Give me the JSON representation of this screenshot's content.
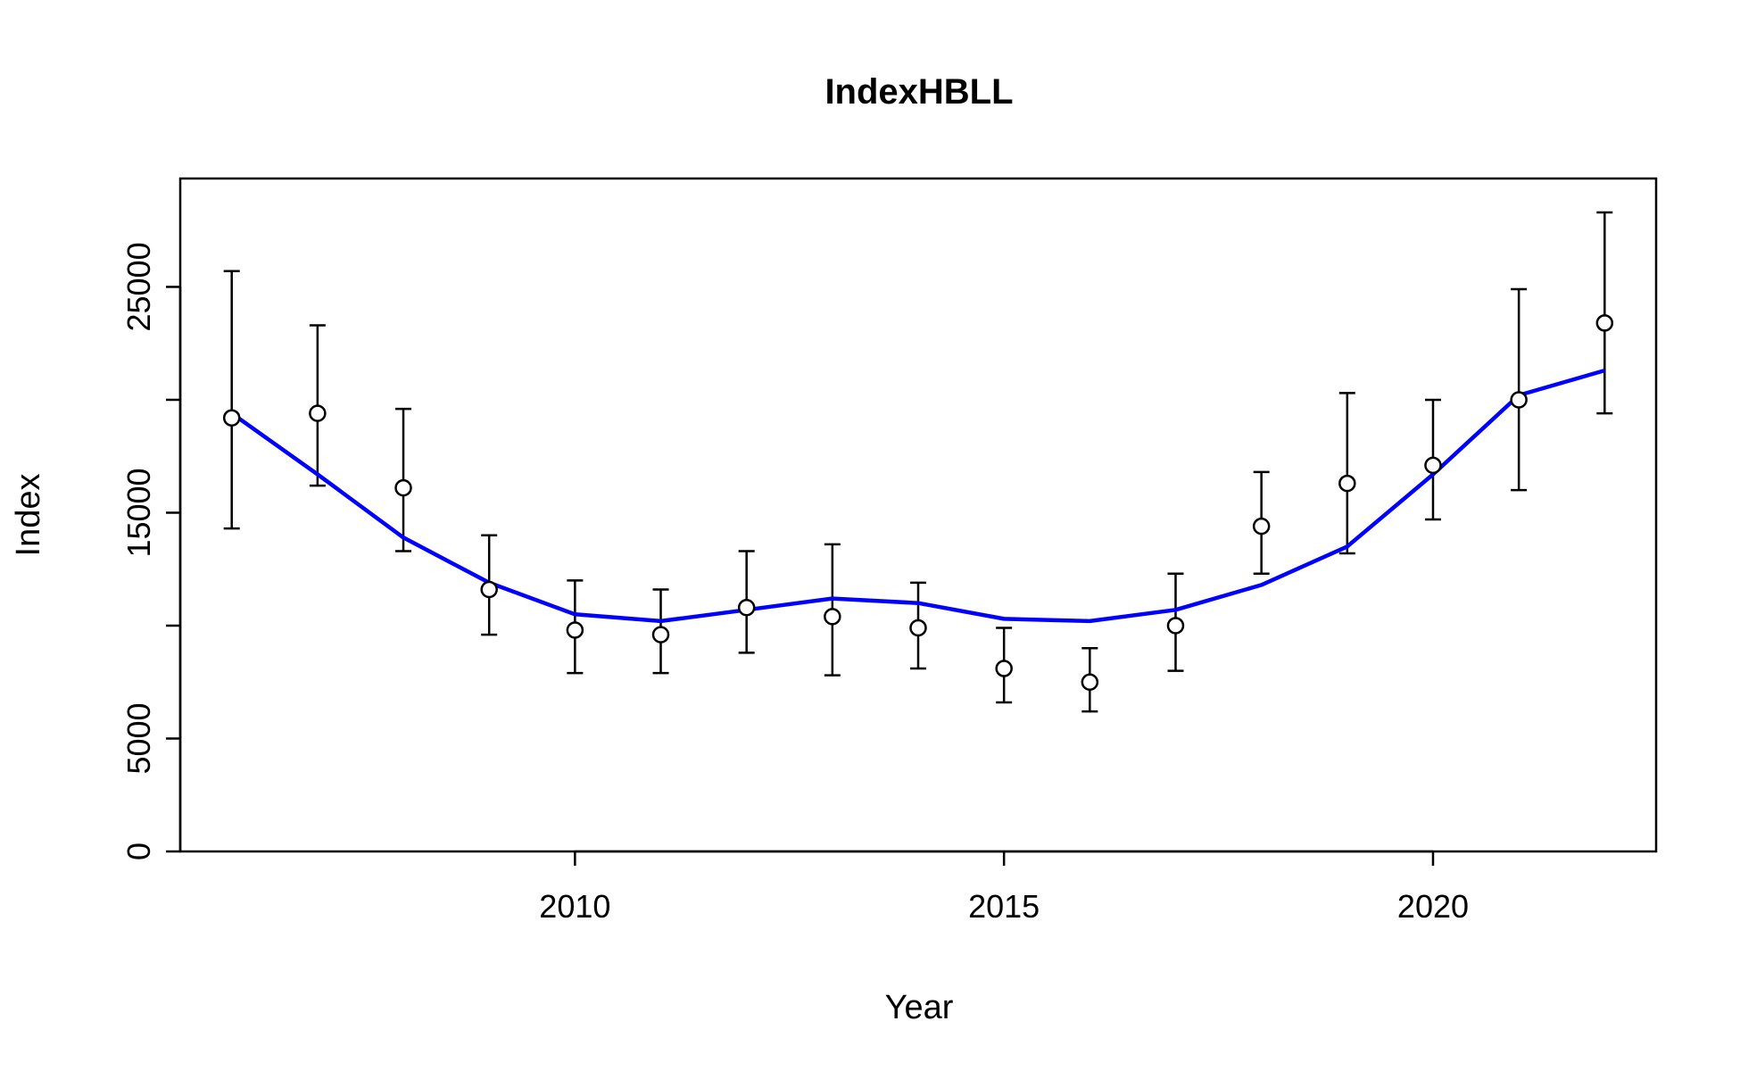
{
  "chart_data": {
    "type": "scatter",
    "title": "IndexHBLL",
    "xlabel": "Year",
    "ylabel": "Index",
    "xlim": [
      2005.4,
      2022.6
    ],
    "ylim": [
      0,
      29800
    ],
    "xticks": [
      2010,
      2015,
      2020
    ],
    "yticks": [
      0,
      5000,
      15000,
      25000
    ],
    "grid": false,
    "colors": {
      "fit": "#0000ff",
      "points": "#000000"
    },
    "series": [
      {
        "type": "points_with_errorbars",
        "x": [
          2006,
          2007,
          2008,
          2009,
          2010,
          2011,
          2012,
          2013,
          2014,
          2015,
          2016,
          2017,
          2018,
          2019,
          2020,
          2021,
          2022
        ],
        "y": [
          19200,
          19400,
          16100,
          11600,
          9800,
          9600,
          10800,
          10400,
          9900,
          8100,
          7500,
          10000,
          14400,
          16300,
          17100,
          20000,
          23400
        ],
        "lower": [
          14300,
          16200,
          13300,
          9600,
          7900,
          7900,
          8800,
          7800,
          8100,
          6600,
          6200,
          8000,
          12300,
          13200,
          14700,
          16000,
          19400
        ],
        "upper": [
          25700,
          23300,
          19600,
          14000,
          12000,
          11600,
          13300,
          13600,
          11900,
          9900,
          9000,
          12300,
          16800,
          20300,
          20000,
          24900,
          28300
        ]
      },
      {
        "type": "line",
        "x": [
          2006,
          2007,
          2008,
          2009,
          2010,
          2011,
          2012,
          2013,
          2014,
          2015,
          2016,
          2017,
          2018,
          2019,
          2020,
          2021,
          2022
        ],
        "y": [
          19400,
          16700,
          13900,
          11900,
          10500,
          10200,
          10700,
          11200,
          11000,
          10300,
          10200,
          10700,
          11800,
          13500,
          16700,
          20200,
          21300
        ]
      }
    ]
  }
}
